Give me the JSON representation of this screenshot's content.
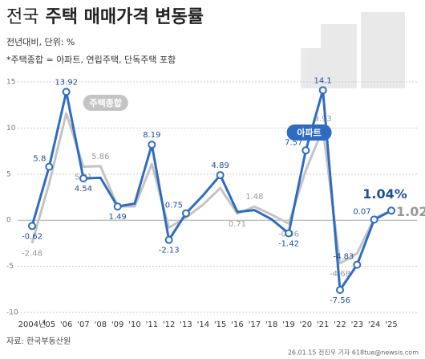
{
  "chart_data": {
    "type": "line",
    "title_light": "전국",
    "title": "주택 매매가격 변동률",
    "subtitle": "전년대비, 단위: %",
    "note": "*주택종합 = 아파트, 연립주택, 단독주택 포함",
    "source": "자료: 한국부동산원",
    "credit": "26.01.15 전진우 기자 618tue@newsis.com",
    "categories": [
      "2004년",
      "'05",
      "'06",
      "'07",
      "'08",
      "'09",
      "'10",
      "'11",
      "'12",
      "'13",
      "'14",
      "'15",
      "'16",
      "'17",
      "'18",
      "'19",
      "'20",
      "'21",
      "'22",
      "'23",
      "'24",
      "'25"
    ],
    "ylim": [
      -10,
      15
    ],
    "yticks": [
      15,
      10,
      5,
      0,
      -5,
      -10
    ],
    "grid": true,
    "series": [
      {
        "name": "주택종합",
        "color": "#c4c4c4",
        "values": [
          -2.48,
          4.0,
          11.6,
          5.81,
          5.86,
          1.5,
          1.5,
          6.1,
          -0.8,
          0.3,
          1.7,
          3.5,
          0.71,
          1.48,
          0.6,
          -0.36,
          5.4,
          9.93,
          -4.68,
          -3.6,
          0.2,
          1.02
        ],
        "value_labels": [
          "-2.48",
          null,
          null,
          "5.81",
          "5.86",
          null,
          null,
          null,
          null,
          null,
          null,
          null,
          "0.71",
          "1.48",
          null,
          "-0.36",
          null,
          "9.93",
          "-4.68",
          null,
          null,
          "1.02"
        ]
      },
      {
        "name": "아파트",
        "color": "#2f6cc1",
        "values": [
          -0.62,
          5.8,
          13.92,
          4.54,
          4.6,
          1.49,
          1.8,
          8.19,
          -2.13,
          0.75,
          2.7,
          4.89,
          0.9,
          1.1,
          0.1,
          -1.42,
          7.57,
          14.1,
          -7.56,
          -4.83,
          0.07,
          1.04
        ],
        "value_labels": [
          "-0.62",
          "5.8",
          "13.92",
          "4.54",
          null,
          "1.49",
          null,
          "8.19",
          "-2.13",
          "0.75",
          null,
          "4.89",
          null,
          null,
          null,
          "-1.42",
          "7.57",
          "14.1",
          "-7.56",
          "-4.83",
          "0.07",
          "1.04%"
        ]
      }
    ]
  }
}
